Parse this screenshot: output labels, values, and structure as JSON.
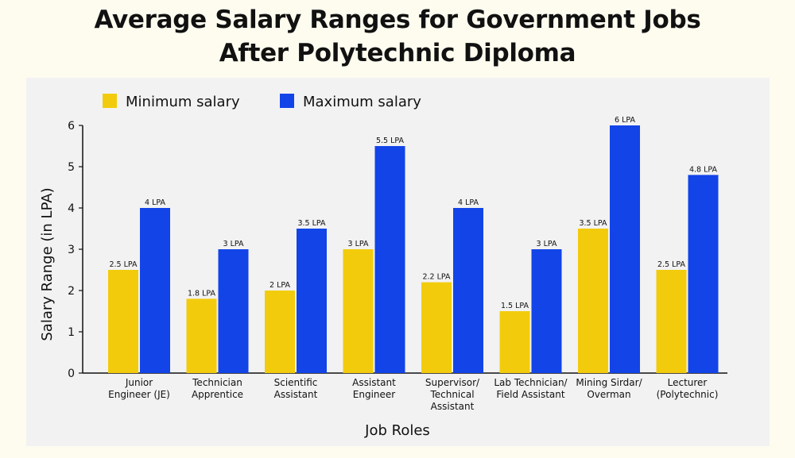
{
  "title_lines": [
    "Average Salary Ranges for Government Jobs",
    "After Polytechnic Diploma"
  ],
  "colors": {
    "minimum": "#f2cc0c",
    "maximum": "#1244e8",
    "background": "#fefcef",
    "panel": "#f2f2f2"
  },
  "chart_data": {
    "type": "bar",
    "title": "Average Salary Ranges for Government Jobs After Polytechnic Diploma",
    "xlabel": "Job Roles",
    "ylabel": "Salary Range (in LPA)",
    "ylim": [
      0,
      6
    ],
    "yticks": [
      "0",
      "1",
      "2",
      "3",
      "4",
      "5",
      "6"
    ],
    "grid": false,
    "legend_position": "top-left",
    "categories": [
      [
        "Junior",
        "Engineer (JE)"
      ],
      [
        "Technician",
        "Apprentice"
      ],
      [
        "Scientific",
        "Assistant"
      ],
      [
        "Assistant",
        "Engineer"
      ],
      [
        "Supervisor/",
        "Technical",
        "Assistant"
      ],
      [
        "Lab Technician/",
        "Field Assistant"
      ],
      [
        "Mining Sirdar/",
        "Overman"
      ],
      [
        "Lecturer",
        "(Polytechnic)"
      ]
    ],
    "series": [
      {
        "name": "Minimum salary",
        "values": [
          2.5,
          1.8,
          2,
          3,
          2.2,
          1.5,
          3.5,
          2.5
        ],
        "labels": [
          "2.5 LPA",
          "1.8 LPA",
          "2 LPA",
          "3 LPA",
          "2.2 LPA",
          "1.5 LPA",
          "3.5 LPA",
          "2.5 LPA"
        ]
      },
      {
        "name": "Maximum salary",
        "values": [
          4,
          3,
          3.5,
          5.5,
          4,
          3,
          6,
          4.8
        ],
        "labels": [
          "4 LPA",
          "3 LPA",
          "3.5 LPA",
          "5.5 LPA",
          "4 LPA",
          "3 LPA",
          "6 LPA",
          "4.8 LPA"
        ]
      }
    ]
  }
}
